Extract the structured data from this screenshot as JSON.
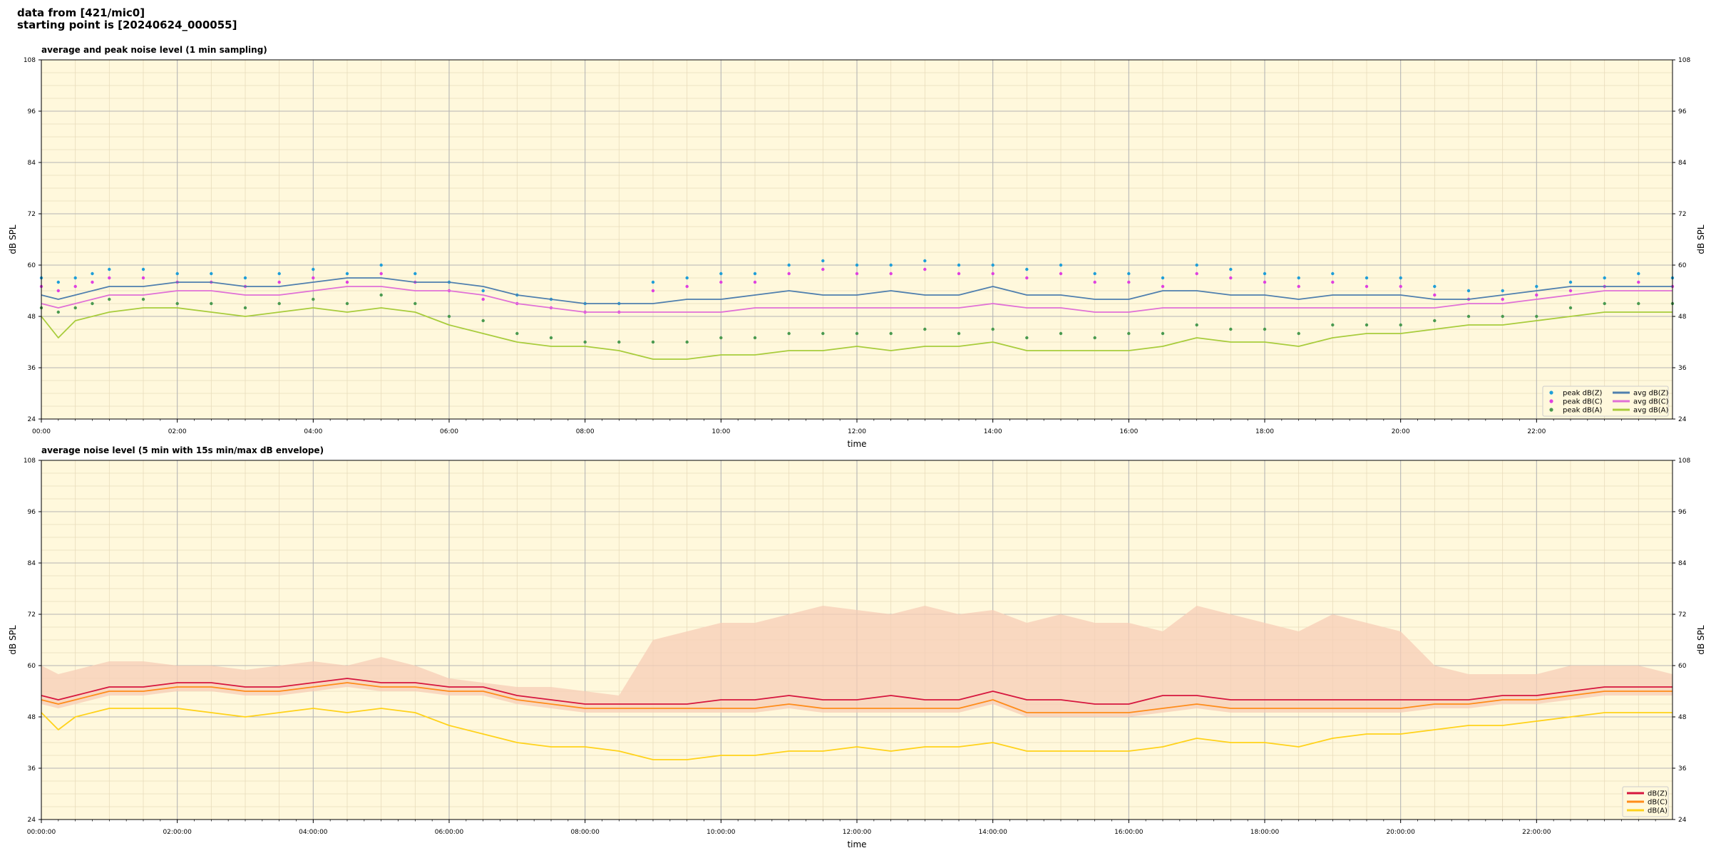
{
  "header": {
    "line1": "data from [421/mic0]",
    "line2": "starting point is [20240624_000055]"
  },
  "colors": {
    "background": "#fff8dc",
    "peak_z": "#1f9ed8",
    "peak_c": "#e040e0",
    "peak_a": "#4a9a50",
    "avg_z": "#4f7fae",
    "avg_c": "#e070d6",
    "avg_a": "#a8cc3c",
    "dbz": "#d6163e",
    "dbc": "#ff8c1a",
    "dba": "#ffd21a",
    "envelope": "#f7cdb7"
  },
  "chart_data": [
    {
      "type": "line",
      "title": "average and peak noise level (1 min sampling)",
      "xlabel": "time",
      "ylabel": "dB SPL",
      "xlim": [
        "00:00",
        "24:00"
      ],
      "ylim": [
        24,
        108
      ],
      "yticks": [
        24,
        36,
        48,
        60,
        72,
        84,
        96,
        108
      ],
      "xticks": [
        "00:00",
        "02:00",
        "04:00",
        "06:00",
        "08:00",
        "10:00",
        "12:00",
        "14:00",
        "16:00",
        "18:00",
        "20:00",
        "22:00"
      ],
      "grid": true,
      "legend_position": "lower-right",
      "legend_columns": 2,
      "x_hours": [
        0,
        0.25,
        0.5,
        0.75,
        1,
        1.5,
        2,
        2.5,
        3,
        3.5,
        4,
        4.5,
        5,
        5.5,
        6,
        6.5,
        7,
        7.5,
        8,
        8.5,
        9,
        9.5,
        10,
        10.5,
        11,
        11.5,
        12,
        12.5,
        13,
        13.5,
        14,
        14.5,
        15,
        15.5,
        16,
        16.5,
        17,
        17.5,
        18,
        18.5,
        19,
        19.5,
        20,
        20.5,
        21,
        21.5,
        22,
        22.5,
        23,
        23.5,
        24
      ],
      "series": [
        {
          "name": "peak dB(Z)",
          "kind": "scatter",
          "color_key": "peak_z",
          "values": [
            57,
            56,
            57,
            58,
            59,
            59,
            58,
            58,
            57,
            58,
            59,
            58,
            60,
            58,
            56,
            54,
            53,
            52,
            51,
            51,
            56,
            57,
            58,
            58,
            60,
            61,
            60,
            60,
            61,
            60,
            60,
            59,
            60,
            58,
            58,
            57,
            60,
            59,
            58,
            57,
            58,
            57,
            57,
            55,
            54,
            54,
            55,
            56,
            57,
            58,
            57
          ]
        },
        {
          "name": "peak dB(C)",
          "kind": "scatter",
          "color_key": "peak_c",
          "values": [
            55,
            54,
            55,
            56,
            57,
            57,
            56,
            56,
            55,
            56,
            57,
            56,
            58,
            56,
            54,
            52,
            51,
            50,
            49,
            49,
            54,
            55,
            56,
            56,
            58,
            59,
            58,
            58,
            59,
            58,
            58,
            57,
            58,
            56,
            56,
            55,
            58,
            57,
            56,
            55,
            56,
            55,
            55,
            53,
            52,
            52,
            53,
            54,
            55,
            56,
            55
          ]
        },
        {
          "name": "peak dB(A)",
          "kind": "scatter",
          "color_key": "peak_a",
          "values": [
            50,
            49,
            50,
            51,
            52,
            52,
            51,
            51,
            50,
            51,
            52,
            51,
            53,
            51,
            48,
            47,
            44,
            43,
            42,
            42,
            42,
            42,
            43,
            43,
            44,
            44,
            44,
            44,
            45,
            44,
            45,
            43,
            44,
            43,
            44,
            44,
            46,
            45,
            45,
            44,
            46,
            46,
            46,
            47,
            48,
            48,
            48,
            50,
            51,
            51,
            51
          ]
        },
        {
          "name": "avg dB(Z)",
          "kind": "line",
          "color_key": "avg_z",
          "values": [
            53,
            52,
            53,
            54,
            55,
            55,
            56,
            56,
            55,
            55,
            56,
            57,
            57,
            56,
            56,
            55,
            53,
            52,
            51,
            51,
            51,
            52,
            52,
            53,
            54,
            53,
            53,
            54,
            53,
            53,
            55,
            53,
            53,
            52,
            52,
            54,
            54,
            53,
            53,
            52,
            53,
            53,
            53,
            52,
            52,
            53,
            54,
            55,
            55,
            55,
            55
          ]
        },
        {
          "name": "avg dB(C)",
          "kind": "line",
          "color_key": "avg_c",
          "values": [
            51,
            50,
            51,
            52,
            53,
            53,
            54,
            54,
            53,
            53,
            54,
            55,
            55,
            54,
            54,
            53,
            51,
            50,
            49,
            49,
            49,
            49,
            49,
            50,
            50,
            50,
            50,
            50,
            50,
            50,
            51,
            50,
            50,
            49,
            49,
            50,
            50,
            50,
            50,
            50,
            50,
            50,
            50,
            50,
            51,
            51,
            52,
            53,
            54,
            54,
            54
          ]
        },
        {
          "name": "avg dB(A)",
          "kind": "line",
          "color_key": "avg_a",
          "values": [
            48,
            43,
            47,
            48,
            49,
            50,
            50,
            49,
            48,
            49,
            50,
            49,
            50,
            49,
            46,
            44,
            42,
            41,
            41,
            40,
            38,
            38,
            39,
            39,
            40,
            40,
            41,
            40,
            41,
            41,
            42,
            40,
            40,
            40,
            40,
            41,
            43,
            42,
            42,
            41,
            43,
            44,
            44,
            45,
            46,
            46,
            47,
            48,
            49,
            49,
            49
          ]
        }
      ]
    },
    {
      "type": "line",
      "title": "average noise level (5 min with 15s min/max dB envelope)",
      "xlabel": "time",
      "ylabel": "dB SPL",
      "xlim": [
        "00:00:00",
        "24:00:00"
      ],
      "ylim": [
        24,
        108
      ],
      "yticks": [
        24,
        36,
        48,
        60,
        72,
        84,
        96,
        108
      ],
      "xticks": [
        "00:00:00",
        "02:00:00",
        "04:00:00",
        "06:00:00",
        "08:00:00",
        "10:00:00",
        "12:00:00",
        "14:00:00",
        "16:00:00",
        "18:00:00",
        "20:00:00",
        "22:00:00"
      ],
      "grid": true,
      "legend_position": "lower-right",
      "legend_columns": 1,
      "x_hours": [
        0,
        0.25,
        0.5,
        0.75,
        1,
        1.5,
        2,
        2.5,
        3,
        3.5,
        4,
        4.5,
        5,
        5.5,
        6,
        6.5,
        7,
        7.5,
        8,
        8.5,
        9,
        9.5,
        10,
        10.5,
        11,
        11.5,
        12,
        12.5,
        13,
        13.5,
        14,
        14.5,
        15,
        15.5,
        16,
        16.5,
        17,
        17.5,
        18,
        18.5,
        19,
        19.5,
        20,
        20.5,
        21,
        21.5,
        22,
        22.5,
        23,
        23.5,
        24
      ],
      "envelope_max": [
        60,
        58,
        59,
        60,
        61,
        61,
        60,
        60,
        59,
        60,
        61,
        60,
        62,
        60,
        57,
        56,
        55,
        55,
        54,
        53,
        66,
        68,
        70,
        70,
        72,
        74,
        73,
        72,
        74,
        72,
        73,
        70,
        72,
        70,
        70,
        68,
        74,
        72,
        70,
        68,
        72,
        70,
        68,
        60,
        58,
        58,
        58,
        60,
        60,
        60,
        58
      ],
      "series": [
        {
          "name": "dB(Z)",
          "color_key": "dbz",
          "values": [
            53,
            52,
            53,
            54,
            55,
            55,
            56,
            56,
            55,
            55,
            56,
            57,
            56,
            56,
            55,
            55,
            53,
            52,
            51,
            51,
            51,
            51,
            52,
            52,
            53,
            52,
            52,
            53,
            52,
            52,
            54,
            52,
            52,
            51,
            51,
            53,
            53,
            52,
            52,
            52,
            52,
            52,
            52,
            52,
            52,
            53,
            53,
            54,
            55,
            55,
            55
          ]
        },
        {
          "name": "dB(C)",
          "color_key": "dbc",
          "values": [
            52,
            51,
            52,
            53,
            54,
            54,
            55,
            55,
            54,
            54,
            55,
            56,
            55,
            55,
            54,
            54,
            52,
            51,
            50,
            50,
            50,
            50,
            50,
            50,
            51,
            50,
            50,
            50,
            50,
            50,
            52,
            49,
            49,
            49,
            49,
            50,
            51,
            50,
            50,
            50,
            50,
            50,
            50,
            51,
            51,
            52,
            52,
            53,
            54,
            54,
            54
          ]
        },
        {
          "name": "dB(A)",
          "color_key": "dba",
          "values": [
            49,
            45,
            48,
            49,
            50,
            50,
            50,
            49,
            48,
            49,
            50,
            49,
            50,
            49,
            46,
            44,
            42,
            41,
            41,
            40,
            38,
            38,
            39,
            39,
            40,
            40,
            41,
            40,
            41,
            41,
            42,
            40,
            40,
            40,
            40,
            41,
            43,
            42,
            42,
            41,
            43,
            44,
            44,
            45,
            46,
            46,
            47,
            48,
            49,
            49,
            49
          ]
        }
      ]
    }
  ]
}
